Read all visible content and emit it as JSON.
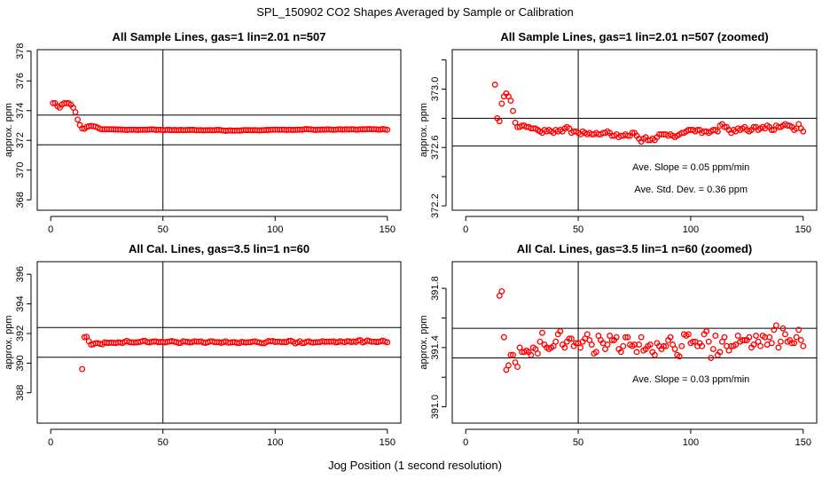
{
  "main_title": "SPL_150902  CO2 Shapes Averaged by Sample or Calibration",
  "xlabel": "Jog Position (1 second resolution)",
  "chart_data": {
    "type": "scatter",
    "marker": "open-circle",
    "marker_color": "#ff0000",
    "line_color": "#000000",
    "series": {
      "sample": {
        "x": [
          1,
          2,
          3,
          4,
          5,
          6,
          7,
          8,
          9,
          10,
          11,
          12,
          13,
          14,
          15,
          16,
          17,
          18,
          19,
          20,
          21,
          22,
          23,
          24,
          25,
          26,
          27,
          28,
          29,
          30,
          31,
          32,
          33,
          34,
          35,
          36,
          37,
          38,
          39,
          40,
          41,
          42,
          43,
          44,
          45,
          46,
          47,
          48,
          49,
          50,
          51,
          52,
          53,
          54,
          55,
          56,
          57,
          58,
          59,
          60,
          61,
          62,
          63,
          64,
          65,
          66,
          67,
          68,
          69,
          70,
          71,
          72,
          73,
          74,
          75,
          76,
          77,
          78,
          79,
          80,
          81,
          82,
          83,
          84,
          85,
          86,
          87,
          88,
          89,
          90,
          91,
          92,
          93,
          94,
          95,
          96,
          97,
          98,
          99,
          100,
          101,
          102,
          103,
          104,
          105,
          106,
          107,
          108,
          109,
          110,
          111,
          112,
          113,
          114,
          115,
          116,
          117,
          118,
          119,
          120,
          121,
          122,
          123,
          124,
          125,
          126,
          127,
          128,
          129,
          130,
          131,
          132,
          133,
          134,
          135,
          136,
          137,
          138,
          139,
          140,
          141,
          142,
          143,
          144,
          145,
          146,
          147,
          148,
          149,
          150
        ],
        "y": [
          374.5,
          374.5,
          374.3,
          374.2,
          374.4,
          374.5,
          374.5,
          374.5,
          374.4,
          374.2,
          373.9,
          373.4,
          373.03,
          372.8,
          372.78,
          372.9,
          372.95,
          372.97,
          372.95,
          372.92,
          372.85,
          372.77,
          372.74,
          372.74,
          372.75,
          372.75,
          372.74,
          372.74,
          372.73,
          372.73,
          372.73,
          372.72,
          372.71,
          372.7,
          372.72,
          372.71,
          372.72,
          372.71,
          372.7,
          372.72,
          372.71,
          372.72,
          372.71,
          372.73,
          372.74,
          372.73,
          372.7,
          372.71,
          372.71,
          372.7,
          372.69,
          372.71,
          372.7,
          372.69,
          372.7,
          372.69,
          372.69,
          372.7,
          372.69,
          372.69,
          372.7,
          372.7,
          372.71,
          372.7,
          372.68,
          372.68,
          372.69,
          372.67,
          372.68,
          372.68,
          372.69,
          372.68,
          372.68,
          372.7,
          372.7,
          372.68,
          372.66,
          372.64,
          372.66,
          372.67,
          372.65,
          372.65,
          372.66,
          372.65,
          372.67,
          372.69,
          372.69,
          372.69,
          372.69,
          372.68,
          372.69,
          372.68,
          372.67,
          372.68,
          372.69,
          372.7,
          372.7,
          372.71,
          372.72,
          372.72,
          372.72,
          372.71,
          372.72,
          372.72,
          372.7,
          372.71,
          372.71,
          372.7,
          372.71,
          372.72,
          372.72,
          372.71,
          372.75,
          372.76,
          372.74,
          372.74,
          372.72,
          372.7,
          372.72,
          372.71,
          372.73,
          372.72,
          372.73,
          372.74,
          372.72,
          372.71,
          372.72,
          372.74,
          372.74,
          372.72,
          372.73,
          372.74,
          372.73,
          372.75,
          372.74,
          372.72,
          372.72,
          372.75,
          372.74,
          372.74,
          372.75,
          372.76,
          372.75,
          372.75,
          372.74,
          372.72,
          372.73,
          372.76,
          372.73,
          372.71
        ]
      },
      "cal": {
        "x": [
          14,
          15,
          16,
          17,
          18,
          19,
          20,
          21,
          22,
          23,
          24,
          25,
          26,
          27,
          28,
          29,
          30,
          31,
          32,
          33,
          34,
          35,
          36,
          37,
          38,
          39,
          40,
          41,
          42,
          43,
          44,
          45,
          46,
          47,
          48,
          49,
          50,
          51,
          52,
          53,
          54,
          55,
          56,
          57,
          58,
          59,
          60,
          61,
          62,
          63,
          64,
          65,
          66,
          67,
          68,
          69,
          70,
          71,
          72,
          73,
          74,
          75,
          76,
          77,
          78,
          79,
          80,
          81,
          82,
          83,
          84,
          85,
          86,
          87,
          88,
          89,
          90,
          91,
          92,
          93,
          94,
          95,
          96,
          97,
          98,
          99,
          100,
          101,
          102,
          103,
          104,
          105,
          106,
          107,
          108,
          109,
          110,
          111,
          112,
          113,
          114,
          115,
          116,
          117,
          118,
          119,
          120,
          121,
          122,
          123,
          124,
          125,
          126,
          127,
          128,
          129,
          130,
          131,
          132,
          133,
          134,
          135,
          136,
          137,
          138,
          139,
          140,
          141,
          142,
          143,
          144,
          145,
          146,
          147,
          148,
          149,
          150
        ],
        "y": [
          389.6,
          391.75,
          391.78,
          391.47,
          391.25,
          391.28,
          391.35,
          391.35,
          391.3,
          391.27,
          391.4,
          391.37,
          391.37,
          391.38,
          391.37,
          391.35,
          391.4,
          391.39,
          391.36,
          391.44,
          391.5,
          391.42,
          391.4,
          391.39,
          391.4,
          391.41,
          391.44,
          391.49,
          391.51,
          391.42,
          391.4,
          391.44,
          391.46,
          391.46,
          391.41,
          391.43,
          391.43,
          391.4,
          391.44,
          391.46,
          391.49,
          391.45,
          391.42,
          391.36,
          391.37,
          391.48,
          391.45,
          391.43,
          391.39,
          391.42,
          391.48,
          391.45,
          391.45,
          391.47,
          391.39,
          391.37,
          391.41,
          391.47,
          391.47,
          391.42,
          391.41,
          391.42,
          391.37,
          391.42,
          391.47,
          391.38,
          391.39,
          391.41,
          391.42,
          391.37,
          391.35,
          391.43,
          391.41,
          391.39,
          391.41,
          391.41,
          391.45,
          391.47,
          391.42,
          391.39,
          391.35,
          391.34,
          391.41,
          391.49,
          391.48,
          391.49,
          391.43,
          391.44,
          391.44,
          391.41,
          391.43,
          391.41,
          391.49,
          391.51,
          391.44,
          391.33,
          391.39,
          391.48,
          391.35,
          391.37,
          391.44,
          391.47,
          391.41,
          391.38,
          391.41,
          391.41,
          391.42,
          391.48,
          391.44,
          391.45,
          391.45,
          391.45,
          391.47,
          391.4,
          391.42,
          391.48,
          391.44,
          391.41,
          391.48,
          391.47,
          391.42,
          391.47,
          391.43,
          391.52,
          391.55,
          391.4,
          391.44,
          391.53,
          391.49,
          391.44,
          391.45,
          391.43,
          391.43,
          391.47,
          391.52,
          391.45,
          391.41
        ]
      }
    },
    "panels": [
      {
        "title": "All Sample Lines, gas=1 lin=2.01 n=507",
        "series": "sample",
        "ylabel": "approx. ppm",
        "xlim": [
          -6,
          156
        ],
        "ylim": [
          367.3,
          378.1
        ],
        "xticks": [
          0,
          50,
          100,
          150
        ],
        "yticks": [
          368,
          370,
          372,
          374,
          376,
          378
        ],
        "ytick_labels": [
          "368",
          "370",
          "372",
          "374",
          "376",
          "378"
        ],
        "hlines": [
          373.7,
          371.7
        ],
        "vline": 50,
        "annotations": []
      },
      {
        "title": "All Sample Lines, gas=1 lin=2.01 n=507 (zoomed)",
        "series": "sample",
        "ylabel": "approx. ppm",
        "xlim": [
          -6,
          156
        ],
        "ylim": [
          372.17,
          373.27
        ],
        "xticks": [
          0,
          50,
          100,
          150
        ],
        "yticks": [
          372.2,
          372.4,
          372.6,
          372.8,
          373.0,
          373.2
        ],
        "ytick_labels": [
          "372.2",
          "",
          "372.6",
          "",
          "373.0",
          ""
        ],
        "hlines": [
          372.8,
          372.61
        ],
        "vline": 50,
        "annotations": [
          "Ave. Slope =  0.05  ppm/min",
          "Ave. Std. Dev. =  0.36  ppm"
        ]
      },
      {
        "title": "All Cal. Lines, gas=3.5 lin=1 n=60",
        "series": "cal",
        "ylabel": "approx. ppm",
        "xlim": [
          -6,
          156
        ],
        "ylim": [
          385.95,
          396.85
        ],
        "xticks": [
          0,
          50,
          100,
          150
        ],
        "yticks": [
          388,
          390,
          392,
          394,
          396
        ],
        "ytick_labels": [
          "388",
          "390",
          "392",
          "394",
          "396"
        ],
        "hlines": [
          392.4,
          390.4
        ],
        "vline": 50,
        "annotations": []
      },
      {
        "title": "All Cal. Lines, gas=3.5 lin=1 n=60 (zoomed)",
        "series": "cal",
        "ylabel": "approx. ppm",
        "xlim": [
          -6,
          156
        ],
        "ylim": [
          390.89,
          391.98
        ],
        "xticks": [
          0,
          50,
          100,
          150
        ],
        "yticks": [
          391.0,
          391.2,
          391.4,
          391.6,
          391.8
        ],
        "ytick_labels": [
          "391.0",
          "",
          "391.4",
          "",
          "391.8"
        ],
        "hlines": [
          391.53,
          391.33
        ],
        "vline": 50,
        "annotations": [
          "Ave. Slope =  0.03  ppm/min"
        ]
      }
    ]
  }
}
